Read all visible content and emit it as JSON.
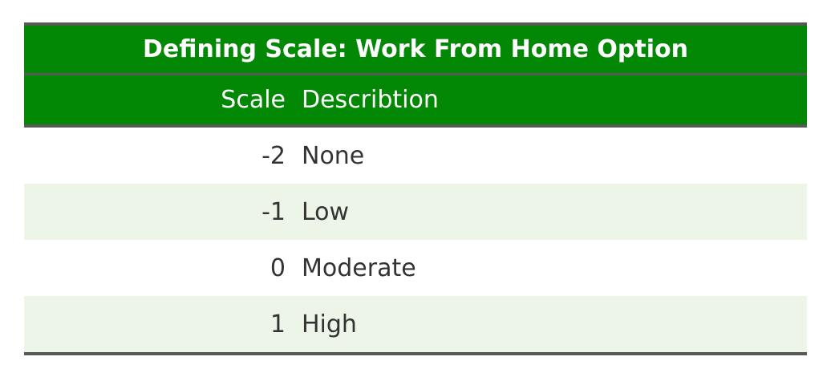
{
  "table": {
    "title": "Defining Scale: Work From Home Option",
    "columns": [
      "Scale",
      "Describtion"
    ],
    "rows": [
      {
        "scale": "-2",
        "description": "None"
      },
      {
        "scale": "-1",
        "description": "Low"
      },
      {
        "scale": "0",
        "description": "Moderate"
      },
      {
        "scale": "1",
        "description": "High"
      }
    ]
  },
  "colors": {
    "header_bg": "#028804",
    "header_text": "#ffffff",
    "rule": "#555a55",
    "stripe": "#edf5e8",
    "body_text": "#333333"
  }
}
